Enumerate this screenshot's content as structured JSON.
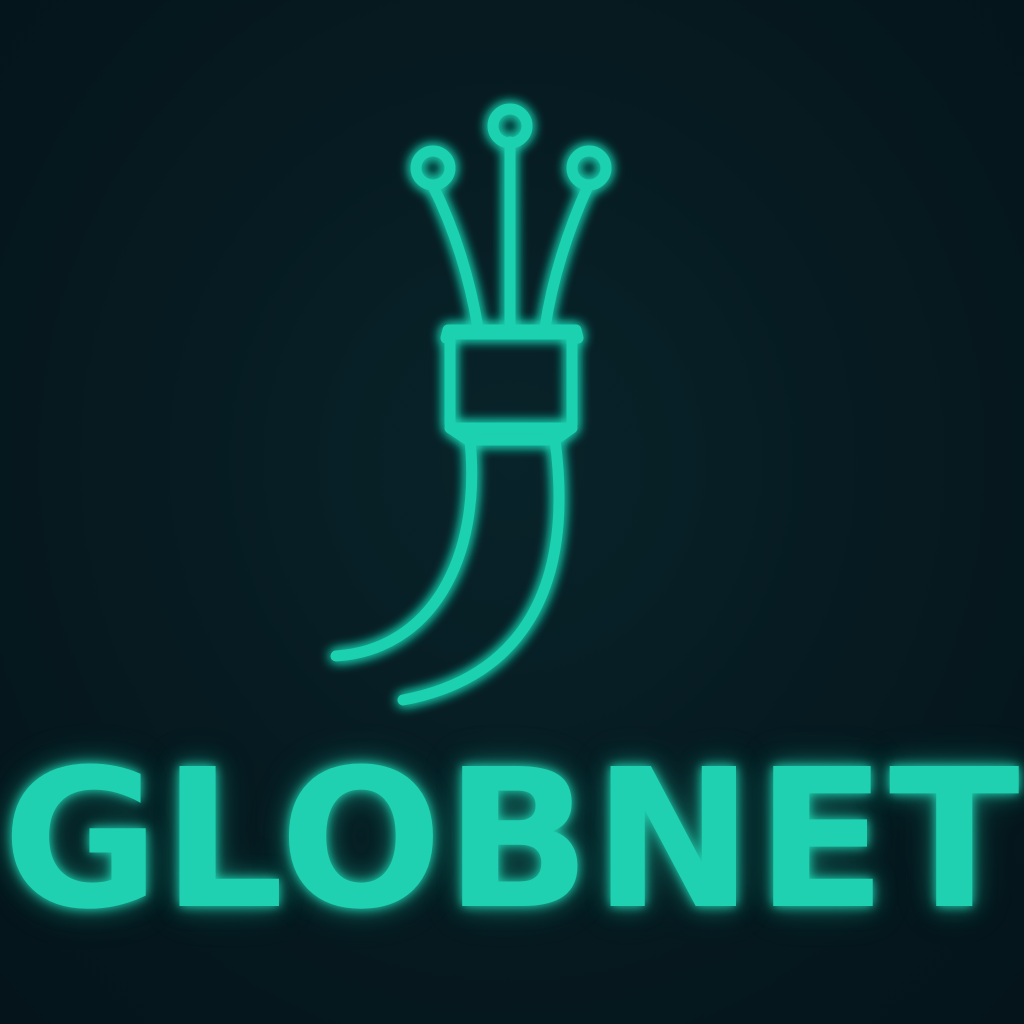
{
  "brand": {
    "name": "GLOBNET",
    "accent_color": "#1fd1b0",
    "background_color": "#061a20"
  },
  "logo": {
    "icon": "fiber-optic-cable-icon"
  }
}
